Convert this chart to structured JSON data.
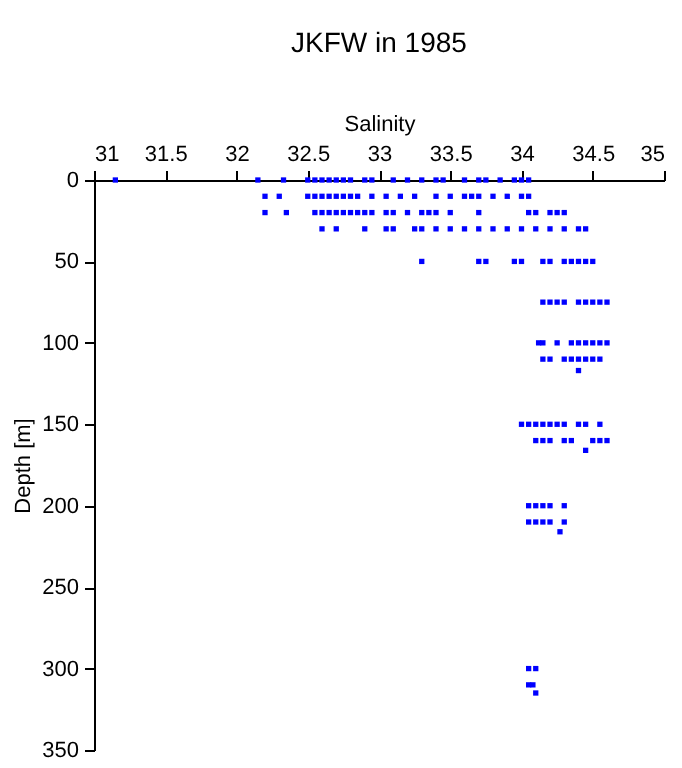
{
  "chart_data": {
    "type": "scatter",
    "title": "JKFW in 1985",
    "xlabel": "Salinity",
    "ylabel": "Depth [m]",
    "xlim": [
      31,
      35
    ],
    "xticks": [
      31,
      31.5,
      32,
      32.5,
      33,
      33.5,
      34,
      34.5,
      35
    ],
    "ylim": [
      350,
      0
    ],
    "yticks": [
      0,
      50,
      100,
      150,
      200,
      250,
      300,
      350
    ],
    "grid": false,
    "marker": "square",
    "series": [
      {
        "color": "#0000ff",
        "x": [
          31.15,
          32.15,
          32.33,
          32.5,
          32.55,
          32.6,
          32.65,
          32.7,
          32.75,
          32.8,
          32.9,
          32.95,
          33.1,
          33.2,
          33.3,
          33.4,
          33.45,
          33.6,
          33.7,
          33.75,
          33.85,
          33.95,
          34.0,
          34.05,
          32.2,
          32.3,
          32.5,
          32.55,
          32.6,
          32.65,
          32.7,
          32.75,
          32.8,
          32.85,
          32.95,
          33.05,
          33.15,
          33.25,
          33.4,
          33.5,
          33.6,
          33.65,
          33.7,
          33.8,
          33.9,
          34.0,
          34.05,
          32.2,
          32.35,
          32.55,
          32.6,
          32.65,
          32.7,
          32.75,
          32.8,
          32.85,
          32.9,
          32.95,
          33.05,
          33.1,
          33.2,
          33.3,
          33.35,
          33.4,
          33.5,
          33.7,
          34.05,
          34.1,
          34.2,
          34.25,
          34.3,
          32.6,
          32.7,
          32.9,
          33.05,
          33.1,
          33.25,
          33.3,
          33.4,
          33.5,
          33.6,
          33.7,
          33.8,
          33.9,
          34.0,
          34.1,
          34.2,
          34.3,
          34.4,
          34.45,
          33.3,
          33.7,
          33.75,
          33.95,
          34.0,
          34.15,
          34.2,
          34.3,
          34.35,
          34.4,
          34.45,
          34.5,
          34.15,
          34.2,
          34.25,
          34.3,
          34.4,
          34.45,
          34.5,
          34.55,
          34.6,
          34.12,
          34.15,
          34.25,
          34.35,
          34.4,
          34.45,
          34.5,
          34.55,
          34.6,
          34.15,
          34.2,
          34.3,
          34.35,
          34.4,
          34.45,
          34.5,
          34.55,
          34.4,
          34.0,
          34.05,
          34.1,
          34.15,
          34.2,
          34.25,
          34.3,
          34.4,
          34.45,
          34.55,
          34.1,
          34.15,
          34.2,
          34.3,
          34.35,
          34.5,
          34.55,
          34.6,
          34.45,
          34.05,
          34.1,
          34.15,
          34.2,
          34.3,
          34.05,
          34.1,
          34.15,
          34.2,
          34.3,
          34.27,
          34.05,
          34.1,
          34.05,
          34.08,
          34.1
        ],
        "values": [
          0,
          0,
          0,
          0,
          0,
          0,
          0,
          0,
          0,
          0,
          0,
          0,
          0,
          0,
          0,
          0,
          0,
          0,
          0,
          0,
          0,
          0,
          0,
          0,
          10,
          10,
          10,
          10,
          10,
          10,
          10,
          10,
          10,
          10,
          10,
          10,
          10,
          10,
          10,
          10,
          10,
          10,
          10,
          10,
          10,
          10,
          10,
          20,
          20,
          20,
          20,
          20,
          20,
          20,
          20,
          20,
          20,
          20,
          20,
          20,
          20,
          20,
          20,
          20,
          20,
          20,
          20,
          20,
          20,
          20,
          20,
          30,
          30,
          30,
          30,
          30,
          30,
          30,
          30,
          30,
          30,
          30,
          30,
          30,
          30,
          30,
          30,
          30,
          30,
          30,
          50,
          50,
          50,
          50,
          50,
          50,
          50,
          50,
          50,
          50,
          50,
          50,
          75,
          75,
          75,
          75,
          75,
          75,
          75,
          75,
          75,
          100,
          100,
          100,
          100,
          100,
          100,
          100,
          100,
          100,
          110,
          110,
          110,
          110,
          110,
          110,
          110,
          110,
          117,
          150,
          150,
          150,
          150,
          150,
          150,
          150,
          150,
          150,
          150,
          160,
          160,
          160,
          160,
          160,
          160,
          160,
          160,
          166,
          200,
          200,
          200,
          200,
          200,
          210,
          210,
          210,
          210,
          210,
          216,
          300,
          300,
          310,
          310,
          315
        ]
      }
    ]
  }
}
